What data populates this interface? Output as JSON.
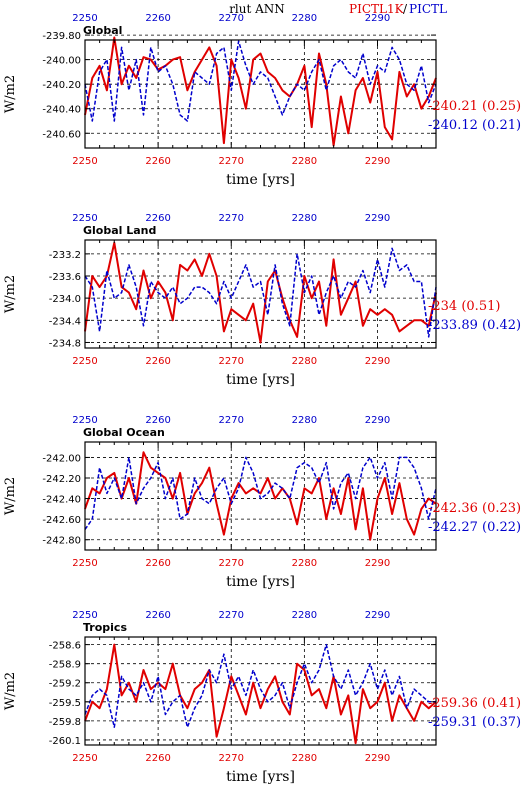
{
  "header": {
    "title": "rlut ANN",
    "legend_red": "PICTL1K",
    "legend_sep": "/",
    "legend_blue": "PICTL"
  },
  "colors": {
    "red": "#e00000",
    "blue": "#0000cc",
    "black": "#000000"
  },
  "chart_data": [
    {
      "type": "line",
      "title": "Global",
      "xlabel": "time [yrs]",
      "ylabel": "W/m2",
      "xlim": [
        2250,
        2298
      ],
      "ylim": [
        -240.72,
        -239.84
      ],
      "xticks": [
        2250,
        2260,
        2270,
        2280,
        2290
      ],
      "yticks": [
        -239.8,
        -240.0,
        -240.2,
        -240.4,
        -240.6
      ],
      "ytick_labels": [
        "-239.80",
        "-240.00",
        "-240.20",
        "-240.40",
        "-240.60"
      ],
      "grid": true,
      "x_start": 2250,
      "series": [
        {
          "name": "PICTL1K",
          "color": "#e00000",
          "dash": "solid",
          "summary": "-240.21 (0.25)",
          "values": [
            -240.45,
            -240.15,
            -240.05,
            -240.25,
            -239.82,
            -240.2,
            -240.05,
            -240.15,
            -239.98,
            -240.0,
            -240.08,
            -240.05,
            -240.0,
            -239.98,
            -240.25,
            -240.1,
            -240.0,
            -239.9,
            -240.05,
            -240.68,
            -240.0,
            -240.15,
            -240.4,
            -240.0,
            -239.95,
            -240.1,
            -240.15,
            -240.25,
            -240.3,
            -240.2,
            -240.05,
            -240.55,
            -239.95,
            -240.2,
            -240.7,
            -240.3,
            -240.6,
            -240.25,
            -240.15,
            -240.35,
            -240.1,
            -240.55,
            -240.65,
            -240.1,
            -240.3,
            -240.2,
            -240.4,
            -240.3,
            -240.15
          ]
        },
        {
          "name": "PICTL",
          "color": "#0000cc",
          "dash": "dashed",
          "summary": "-240.12 (0.21)",
          "values": [
            -240.2,
            -240.5,
            -240.1,
            -240.0,
            -240.5,
            -239.9,
            -240.25,
            -240.0,
            -240.45,
            -239.9,
            -240.1,
            -240.05,
            -240.2,
            -240.45,
            -240.5,
            -240.1,
            -240.15,
            -240.2,
            -239.95,
            -239.9,
            -240.25,
            -239.85,
            -240.05,
            -240.2,
            -240.1,
            -240.15,
            -240.3,
            -240.45,
            -240.3,
            -240.2,
            -240.25,
            -240.1,
            -240.0,
            -240.25,
            -240.05,
            -240.0,
            -240.1,
            -240.15,
            -239.95,
            -240.2,
            -240.05,
            -240.1,
            -239.9,
            -240.0,
            -240.2,
            -240.25,
            -240.05,
            -240.35,
            -240.2
          ]
        }
      ]
    },
    {
      "type": "line",
      "title": "Global Land",
      "xlabel": "time [yrs]",
      "ylabel": "W/m2",
      "xlim": [
        2250,
        2298
      ],
      "ylim": [
        -234.9,
        -232.95
      ],
      "xticks": [
        2250,
        2260,
        2270,
        2280,
        2290
      ],
      "yticks": [
        -233.2,
        -233.6,
        -234.0,
        -234.4,
        -234.8
      ],
      "ytick_labels": [
        "-233.2",
        "-233.6",
        "-234.0",
        "-234.4",
        "-234.8"
      ],
      "grid": true,
      "x_start": 2250,
      "series": [
        {
          "name": "PICTL1K",
          "color": "#e00000",
          "dash": "solid",
          "summary": "-234 (0.51)",
          "values": [
            -234.6,
            -233.6,
            -233.8,
            -233.6,
            -233.0,
            -233.8,
            -233.9,
            -234.2,
            -233.5,
            -234.0,
            -233.7,
            -233.9,
            -234.4,
            -233.4,
            -233.5,
            -233.3,
            -233.6,
            -233.2,
            -233.6,
            -234.6,
            -234.2,
            -234.3,
            -234.4,
            -234.1,
            -234.8,
            -233.7,
            -233.5,
            -234.0,
            -234.4,
            -234.7,
            -233.6,
            -234.0,
            -233.7,
            -234.5,
            -233.3,
            -234.3,
            -234.0,
            -233.7,
            -234.5,
            -234.2,
            -234.3,
            -234.2,
            -234.3,
            -234.6,
            -234.5,
            -234.4,
            -234.4,
            -234.5,
            -233.9
          ]
        },
        {
          "name": "PICTL",
          "color": "#0000cc",
          "dash": "dashed",
          "summary": "-233.89 (0.42)",
          "values": [
            -233.6,
            -233.8,
            -234.6,
            -233.5,
            -234.0,
            -233.9,
            -233.4,
            -233.8,
            -234.5,
            -233.7,
            -233.9,
            -234.0,
            -233.8,
            -234.1,
            -234.0,
            -233.8,
            -233.8,
            -233.9,
            -234.1,
            -233.7,
            -234.0,
            -233.7,
            -233.4,
            -233.8,
            -233.7,
            -234.3,
            -233.4,
            -234.1,
            -234.5,
            -233.2,
            -233.9,
            -233.6,
            -234.3,
            -233.9,
            -233.6,
            -234.0,
            -233.7,
            -233.8,
            -233.5,
            -233.9,
            -233.3,
            -233.8,
            -233.1,
            -233.5,
            -233.4,
            -233.7,
            -233.7,
            -234.7,
            -233.8
          ]
        }
      ]
    },
    {
      "type": "line",
      "title": "Global Ocean",
      "xlabel": "time [yrs]",
      "ylabel": "W/m2",
      "xlim": [
        2250,
        2298
      ],
      "ylim": [
        -242.9,
        -241.85
      ],
      "xticks": [
        2250,
        2260,
        2270,
        2280,
        2290
      ],
      "yticks": [
        -242.0,
        -242.2,
        -242.4,
        -242.6,
        -242.8
      ],
      "ytick_labels": [
        "-242.00",
        "-242.20",
        "-242.40",
        "-242.60",
        "-242.80"
      ],
      "grid": true,
      "x_start": 2250,
      "series": [
        {
          "name": "PICTL1K",
          "color": "#e00000",
          "dash": "solid",
          "summary": "-242.36 (0.23)",
          "values": [
            -242.5,
            -242.3,
            -242.35,
            -242.2,
            -242.15,
            -242.4,
            -242.2,
            -242.45,
            -241.95,
            -242.1,
            -242.15,
            -242.2,
            -242.4,
            -242.15,
            -242.55,
            -242.35,
            -242.25,
            -242.1,
            -242.45,
            -242.75,
            -242.4,
            -242.25,
            -242.35,
            -242.3,
            -242.35,
            -242.2,
            -242.4,
            -242.3,
            -242.4,
            -242.65,
            -242.3,
            -242.35,
            -242.2,
            -242.6,
            -242.3,
            -242.55,
            -242.2,
            -242.7,
            -242.3,
            -242.8,
            -242.4,
            -242.2,
            -242.55,
            -242.25,
            -242.6,
            -242.75,
            -242.5,
            -242.4,
            -242.45
          ]
        },
        {
          "name": "PICTL",
          "color": "#0000cc",
          "dash": "dashed",
          "summary": "-242.27 (0.22)",
          "values": [
            -242.7,
            -242.6,
            -242.1,
            -242.35,
            -242.2,
            -242.4,
            -242.0,
            -242.45,
            -242.3,
            -242.2,
            -242.05,
            -242.4,
            -242.2,
            -242.6,
            -242.55,
            -242.2,
            -242.4,
            -242.45,
            -242.3,
            -242.2,
            -242.45,
            -242.3,
            -242.0,
            -242.15,
            -242.4,
            -242.35,
            -242.25,
            -242.3,
            -242.4,
            -242.1,
            -242.05,
            -242.1,
            -242.25,
            -242.05,
            -242.5,
            -242.25,
            -242.15,
            -242.4,
            -242.1,
            -242.0,
            -242.2,
            -242.05,
            -242.4,
            -242.0,
            -242.0,
            -242.1,
            -242.3,
            -242.6,
            -242.3
          ]
        }
      ]
    },
    {
      "type": "line",
      "title": "Tropics",
      "xlabel": "time [yrs]",
      "ylabel": "W/m2",
      "xlim": [
        2250,
        2298
      ],
      "ylim": [
        -260.18,
        -258.48
      ],
      "xticks": [
        2250,
        2260,
        2270,
        2280,
        2290
      ],
      "yticks": [
        -258.6,
        -258.9,
        -259.2,
        -259.5,
        -259.8,
        -260.1
      ],
      "ytick_labels": [
        "-258.6",
        "-258.9",
        "-259.2",
        "-259.5",
        "-259.8",
        "-260.1"
      ],
      "grid": true,
      "x_start": 2250,
      "series": [
        {
          "name": "PICTL1K",
          "color": "#e00000",
          "dash": "solid",
          "summary": "-259.36 (0.41)",
          "values": [
            -259.8,
            -259.5,
            -259.6,
            -259.3,
            -258.6,
            -259.4,
            -259.2,
            -259.5,
            -259.0,
            -259.3,
            -259.2,
            -259.3,
            -258.9,
            -259.4,
            -259.6,
            -259.3,
            -259.2,
            -259.0,
            -260.05,
            -259.6,
            -259.1,
            -259.4,
            -259.7,
            -259.2,
            -259.6,
            -259.3,
            -259.1,
            -259.5,
            -259.7,
            -258.9,
            -259.0,
            -259.4,
            -259.3,
            -259.6,
            -259.1,
            -259.7,
            -259.4,
            -260.15,
            -259.3,
            -259.6,
            -259.5,
            -259.2,
            -259.8,
            -259.4,
            -259.6,
            -259.8,
            -259.5,
            -259.6,
            -259.5
          ]
        },
        {
          "name": "PICTL",
          "color": "#0000cc",
          "dash": "dashed",
          "summary": "-259.31 (0.37)",
          "values": [
            -259.7,
            -259.4,
            -259.3,
            -259.4,
            -259.9,
            -259.1,
            -259.3,
            -259.4,
            -259.2,
            -259.5,
            -259.1,
            -259.7,
            -259.5,
            -259.4,
            -259.9,
            -259.6,
            -259.4,
            -259.0,
            -259.2,
            -258.75,
            -259.3,
            -259.1,
            -259.4,
            -259.0,
            -259.3,
            -259.5,
            -259.4,
            -259.2,
            -259.6,
            -259.2,
            -258.9,
            -259.2,
            -259.0,
            -258.6,
            -259.1,
            -259.3,
            -259.0,
            -259.4,
            -259.2,
            -258.9,
            -259.3,
            -259.0,
            -259.4,
            -259.1,
            -259.6,
            -259.3,
            -259.4,
            -259.5,
            -259.5
          ]
        }
      ]
    }
  ]
}
